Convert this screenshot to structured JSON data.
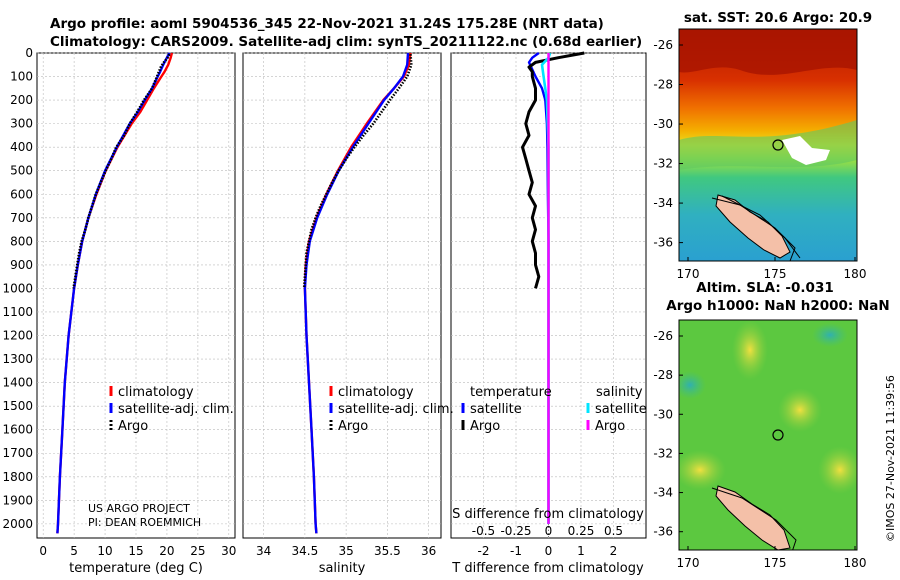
{
  "header": {
    "line1": "Argo profile: aoml 5904536_345 22-Nov-2021 31.24S 175.28E (NRT data)",
    "line2": "Climatology: CARS2009. Satellite-adj clim: synTS_20211122.nc (0.68d earlier)"
  },
  "colors": {
    "climatology": "#ff0000",
    "satellite": "#0000ff",
    "argo": "#000000",
    "sal_satellite": "#00e5ff",
    "sal_argo": "#ff00ff",
    "grid": "#bbbbbb"
  },
  "chart_data": [
    {
      "id": "temperature",
      "type": "line",
      "xlabel": "temperature (deg C)",
      "ylabel": "",
      "xlim": [
        -1,
        31
      ],
      "ylim": [
        2060,
        0
      ],
      "xticks": [
        0,
        5,
        10,
        15,
        20,
        25,
        30
      ],
      "yticks": [
        0,
        100,
        200,
        300,
        400,
        500,
        600,
        700,
        800,
        900,
        1000,
        1100,
        1200,
        1300,
        1400,
        1500,
        1600,
        1700,
        1800,
        1900,
        2000
      ],
      "series": [
        {
          "name": "climatology",
          "style": "solid",
          "depth": [
            0,
            20,
            50,
            80,
            100,
            150,
            200,
            250,
            300,
            400,
            500,
            600,
            700,
            800,
            900,
            1000,
            1200,
            1400,
            1600,
            1800,
            2000,
            2040
          ],
          "values": [
            20.8,
            20.6,
            20.2,
            19.6,
            19.1,
            17.9,
            16.8,
            15.7,
            14.3,
            12.0,
            10.1,
            8.6,
            7.3,
            6.3,
            5.6,
            5.0,
            4.1,
            3.5,
            3.1,
            2.7,
            2.4,
            2.3
          ]
        },
        {
          "name": "satellite-adj. clim.",
          "style": "solid",
          "depth": [
            0,
            20,
            50,
            80,
            100,
            150,
            200,
            250,
            300,
            400,
            500,
            600,
            700,
            800,
            900,
            1000,
            1200,
            1400,
            1600,
            1800,
            2000,
            2040
          ],
          "values": [
            20.4,
            20.0,
            19.4,
            18.9,
            18.5,
            17.6,
            16.4,
            15.3,
            14.0,
            11.9,
            10.0,
            8.5,
            7.3,
            6.3,
            5.6,
            5.0,
            4.1,
            3.5,
            3.1,
            2.7,
            2.4,
            2.3
          ]
        },
        {
          "name": "Argo",
          "style": "dotted",
          "depth": [
            5,
            20,
            40,
            60,
            80,
            100,
            150,
            200,
            250,
            300,
            350,
            400,
            450,
            500,
            550,
            600,
            650,
            700,
            750,
            800,
            850,
            900,
            950,
            1000
          ],
          "values": [
            20.4,
            20.1,
            19.5,
            19.0,
            18.7,
            18.4,
            17.6,
            16.3,
            15.2,
            14.0,
            13.1,
            11.8,
            11.0,
            10.1,
            9.3,
            8.5,
            7.9,
            7.3,
            6.8,
            6.2,
            5.8,
            5.5,
            5.2,
            4.9
          ]
        }
      ],
      "legend": [
        "climatology",
        "satellite-adj. clim.",
        "Argo"
      ],
      "annotations": [
        "US ARGO PROJECT",
        "PI: DEAN ROEMMICH"
      ]
    },
    {
      "id": "salinity",
      "type": "line",
      "xlabel": "salinity",
      "xlim": [
        33.75,
        36.15
      ],
      "ylim": [
        2060,
        0
      ],
      "xticks": [
        34,
        34.5,
        35,
        35.5,
        36
      ],
      "series": [
        {
          "name": "climatology",
          "style": "solid",
          "depth": [
            0,
            50,
            100,
            150,
            200,
            300,
            400,
            500,
            600,
            700,
            800,
            900,
            1000,
            1200,
            1400,
            1600,
            1800,
            2000,
            2040
          ],
          "values": [
            35.78,
            35.76,
            35.7,
            35.58,
            35.45,
            35.25,
            35.06,
            34.9,
            34.76,
            34.64,
            34.55,
            34.51,
            34.5,
            34.52,
            34.55,
            34.58,
            34.61,
            34.63,
            34.64
          ]
        },
        {
          "name": "satellite-adj. clim.",
          "style": "solid",
          "depth": [
            0,
            50,
            100,
            150,
            200,
            300,
            400,
            500,
            600,
            700,
            800,
            900,
            1000,
            1200,
            1400,
            1600,
            1800,
            2000,
            2040
          ],
          "values": [
            35.75,
            35.74,
            35.69,
            35.58,
            35.46,
            35.27,
            35.08,
            34.91,
            34.77,
            34.65,
            34.56,
            34.52,
            34.5,
            34.52,
            34.55,
            34.58,
            34.61,
            34.63,
            34.64
          ]
        },
        {
          "name": "Argo",
          "style": "dotted",
          "depth": [
            5,
            50,
            100,
            150,
            200,
            250,
            300,
            350,
            400,
            450,
            500,
            550,
            600,
            650,
            700,
            750,
            800,
            850,
            900,
            950,
            1000
          ],
          "values": [
            35.78,
            35.79,
            35.74,
            35.64,
            35.53,
            35.43,
            35.33,
            35.21,
            35.1,
            35.0,
            34.91,
            34.83,
            34.76,
            34.69,
            34.63,
            34.58,
            34.55,
            34.52,
            34.51,
            34.5,
            34.49
          ]
        }
      ],
      "legend": [
        "climatology",
        "satellite-adj. clim.",
        "Argo"
      ]
    },
    {
      "id": "difference",
      "type": "line",
      "xlabel": "T difference from climatology",
      "top_xlabel": "S difference from climatology",
      "xlim": [
        -3,
        3
      ],
      "ylim": [
        2060,
        0
      ],
      "xticks": [
        -2,
        -1,
        0,
        1,
        2
      ],
      "top_ticks": [
        "-0.5",
        "-0.25",
        "0",
        "0.25",
        "0.5"
      ],
      "top_tick_values": [
        -2,
        -1,
        0,
        1,
        2
      ],
      "series": [
        {
          "name": "temperature satellite",
          "style": "solid",
          "depth": [
            0,
            20,
            40,
            70,
            100,
            150,
            200,
            300,
            400,
            600,
            800,
            1000,
            1500,
            2000
          ],
          "values": [
            -0.3,
            -0.5,
            -0.6,
            -0.5,
            -0.4,
            -0.2,
            -0.1,
            -0.05,
            -0.03,
            -0.02,
            0,
            0,
            0,
            0
          ]
        },
        {
          "name": "temperature Argo",
          "style": "solid",
          "depth": [
            0,
            20,
            40,
            60,
            80,
            100,
            150,
            200,
            250,
            300,
            350,
            400,
            450,
            500,
            550,
            600,
            650,
            700,
            750,
            800,
            850,
            900,
            950,
            1000
          ],
          "values": [
            1.1,
            0.3,
            -0.4,
            -0.6,
            -0.5,
            -0.5,
            -0.4,
            -0.4,
            -0.6,
            -0.7,
            -0.6,
            -0.8,
            -0.7,
            -0.6,
            -0.5,
            -0.6,
            -0.4,
            -0.5,
            -0.4,
            -0.5,
            -0.4,
            -0.4,
            -0.3,
            -0.4
          ]
        },
        {
          "name": "salinity satellite",
          "style": "solid",
          "depth": [
            0,
            20,
            50,
            100,
            200,
            400,
            600,
            800,
            1000,
            1500,
            2000
          ],
          "values": [
            0.05,
            0.0,
            -0.2,
            -0.15,
            -0.05,
            0,
            0,
            0,
            0,
            0,
            0
          ]
        },
        {
          "name": "salinity Argo",
          "style": "solid",
          "depth": [
            0,
            2000
          ],
          "values": [
            0,
            0
          ]
        }
      ],
      "legend_groups": {
        "temperature": "temperature",
        "salinity": "salinity",
        "satellite": "satellite",
        "argo": "Argo"
      }
    }
  ],
  "maps": {
    "sst": {
      "title": "sat. SST: 20.6 Argo: 20.9",
      "yticks": [
        "-26",
        "-28",
        "-30",
        "-32",
        "-34",
        "-36"
      ],
      "xticks": [
        "170",
        "175",
        "180"
      ]
    },
    "sla": {
      "title1": "Altim. SLA: -0.031",
      "title2": "Argo h1000: NaN h2000: NaN",
      "yticks": [
        "-26",
        "-28",
        "-30",
        "-32",
        "-34",
        "-36"
      ],
      "xticks": [
        "170",
        "175",
        "180"
      ]
    }
  },
  "stamp": "©IMOS 27-Nov-2021 11:39:56"
}
